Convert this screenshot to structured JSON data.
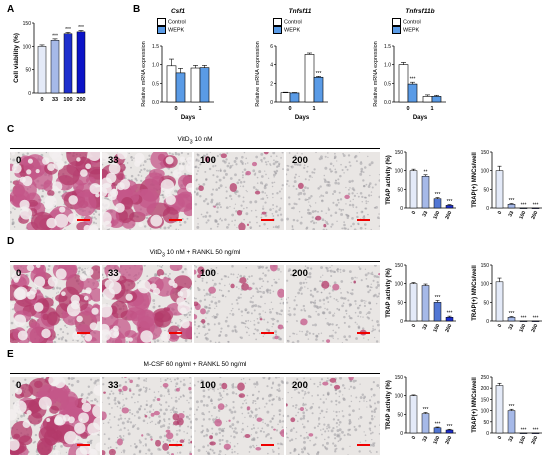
{
  "panels": {
    "A": "A",
    "B": "B",
    "C": "C",
    "D": "D",
    "E": "E"
  },
  "colors": {
    "ctrl": "#ffffff",
    "wepk": "#5a9be6",
    "blue1": "#e4eaf8",
    "blue2": "#a6b9e8",
    "blue3": "#5277d4",
    "blue4": "#1d2fcd",
    "blue5": "#0b13c7"
  },
  "legend": {
    "control": "Control",
    "wepk": "WEPK"
  },
  "rows": {
    "C": {
      "title": "VitD",
      "sub": "3",
      "rest": " 10 nM"
    },
    "D": {
      "title": "VitD",
      "sub": "3",
      "rest": " 10 nM + RANKL 50 ng/ml"
    },
    "E": {
      "title": "M-CSF 60 ng/ml + RANKL 50 ng/ml"
    }
  },
  "image_labels": [
    "0",
    "33",
    "100",
    "200"
  ],
  "genes": [
    "Csf1",
    "Tnfsf11",
    "Tnfrsf11b"
  ],
  "chart_data": [
    {
      "id": "A",
      "type": "bar",
      "ylabel": "Cell viability (%)",
      "categories": [
        "0",
        "33",
        "100",
        "200"
      ],
      "values": [
        100,
        113,
        127,
        131
      ],
      "errors": [
        3,
        3,
        3,
        3
      ],
      "sig": [
        "",
        "***",
        "***",
        "***"
      ],
      "ylim": [
        0,
        150
      ],
      "yticks": [
        0,
        50,
        100,
        150
      ]
    },
    {
      "id": "B1",
      "type": "bar",
      "title": "Csf1",
      "ylabel": "Relative mRNA expression",
      "xlabel": "Days",
      "categories": [
        "0",
        "1"
      ],
      "series": [
        {
          "name": "Control",
          "values": [
            0.97,
            0.91
          ],
          "errors": [
            0.18,
            0.07
          ]
        },
        {
          "name": "WEPK",
          "values": [
            0.78,
            0.92
          ],
          "errors": [
            0.12,
            0.06
          ]
        }
      ],
      "sig": [
        [
          "",
          ""
        ],
        [
          "",
          ""
        ]
      ],
      "ylim": [
        0,
        1.5
      ],
      "yticks": [
        0,
        0.5,
        1.0,
        1.5
      ]
    },
    {
      "id": "B2",
      "type": "bar",
      "title": "Tnfsf11",
      "ylabel": "Relative mRNA expression",
      "xlabel": "Days",
      "categories": [
        "0",
        "1"
      ],
      "series": [
        {
          "name": "Control",
          "values": [
            1.0,
            5.1
          ],
          "errors": [
            0.05,
            0.15
          ]
        },
        {
          "name": "WEPK",
          "values": [
            0.97,
            2.65
          ],
          "errors": [
            0.05,
            0.1
          ]
        }
      ],
      "sig": [
        [
          "",
          ""
        ],
        [
          "",
          "***"
        ]
      ],
      "ylim": [
        0,
        6
      ],
      "yticks": [
        0,
        2,
        4,
        6
      ]
    },
    {
      "id": "B3",
      "type": "bar",
      "title": "Tnfrsf11b",
      "ylabel": "Relative mRNA expression",
      "xlabel": "Days",
      "categories": [
        "0",
        "1"
      ],
      "series": [
        {
          "name": "Control",
          "values": [
            1.0,
            0.15
          ],
          "errors": [
            0.06,
            0.04
          ]
        },
        {
          "name": "WEPK",
          "values": [
            0.48,
            0.15
          ],
          "errors": [
            0.05,
            0.03
          ]
        }
      ],
      "sig": [
        [
          "",
          ""
        ],
        [
          "***",
          ""
        ]
      ],
      "ylim": [
        0,
        1.5
      ],
      "yticks": [
        0,
        0.5,
        1.0,
        1.5
      ]
    },
    {
      "id": "C-trap",
      "type": "bar",
      "ylabel": "TRAP activity (%)",
      "categories": [
        "0",
        "33",
        "100",
        "200"
      ],
      "values": [
        100,
        85,
        25,
        7
      ],
      "errors": [
        4,
        4,
        3,
        2
      ],
      "sig": [
        "",
        "**",
        "***",
        "***"
      ],
      "ylim": [
        0,
        150
      ],
      "yticks": [
        0,
        50,
        100,
        150
      ]
    },
    {
      "id": "C-mnc",
      "type": "bar",
      "ylabel": "TRAP(+) MNCs/well",
      "categories": [
        "0",
        "33",
        "100",
        "200"
      ],
      "values": [
        100,
        10,
        0,
        0
      ],
      "errors": [
        12,
        2,
        0,
        0
      ],
      "sig": [
        "",
        "***",
        "***",
        "***"
      ],
      "ylim": [
        0,
        150
      ],
      "yticks": [
        0,
        50,
        100,
        150
      ]
    },
    {
      "id": "D-trap",
      "type": "bar",
      "ylabel": "TRAP activity (%)",
      "categories": [
        "0",
        "33",
        "100",
        "200"
      ],
      "values": [
        100,
        95,
        50,
        10
      ],
      "errors": [
        3,
        4,
        5,
        3
      ],
      "sig": [
        "",
        "",
        "***",
        "***"
      ],
      "ylim": [
        0,
        150
      ],
      "yticks": [
        0,
        50,
        100,
        150
      ]
    },
    {
      "id": "D-mnc",
      "type": "bar",
      "ylabel": "TRAP(+) MNCs/well",
      "categories": [
        "0",
        "33",
        "100",
        "200"
      ],
      "values": [
        105,
        10,
        0,
        0
      ],
      "errors": [
        10,
        2,
        0,
        0
      ],
      "sig": [
        "",
        "***",
        "***",
        "***"
      ],
      "ylim": [
        0,
        150
      ],
      "yticks": [
        0,
        50,
        100,
        150
      ]
    },
    {
      "id": "E-trap",
      "type": "bar",
      "ylabel": "TRAP activity (%)",
      "categories": [
        "0",
        "33",
        "100",
        "200"
      ],
      "values": [
        100,
        52,
        14,
        8
      ],
      "errors": [
        2,
        3,
        2,
        2
      ],
      "sig": [
        "",
        "***",
        "***",
        "***"
      ],
      "ylim": [
        0,
        150
      ],
      "yticks": [
        0,
        50,
        100,
        150
      ]
    },
    {
      "id": "E-mnc",
      "type": "bar",
      "ylabel": "TRAP(+) MNCs/well",
      "categories": [
        "0",
        "33",
        "100",
        "200"
      ],
      "values": [
        212,
        100,
        0,
        0
      ],
      "errors": [
        10,
        6,
        0,
        0
      ],
      "sig": [
        "",
        "***",
        "***",
        "***"
      ],
      "ylim": [
        0,
        250
      ],
      "yticks": [
        0,
        50,
        100,
        150,
        200,
        250
      ]
    }
  ]
}
